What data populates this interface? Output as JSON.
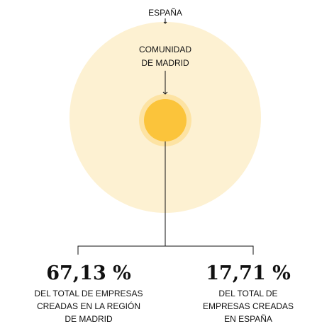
{
  "labels": {
    "outer": "ESPAÑA",
    "inner": [
      "COMUNIDAD",
      "DE MADRID"
    ]
  },
  "stats": [
    {
      "value": "67,13 %",
      "caption": [
        "DEL TOTAL DE EMPRESAS",
        "CREADAS EN LA REGIÓN",
        "DE MADRID"
      ]
    },
    {
      "value": "17,71 %",
      "caption": [
        "DEL TOTAL DE",
        "EMPRESAS CREADAS",
        "EN ESPAÑA"
      ]
    }
  ]
}
